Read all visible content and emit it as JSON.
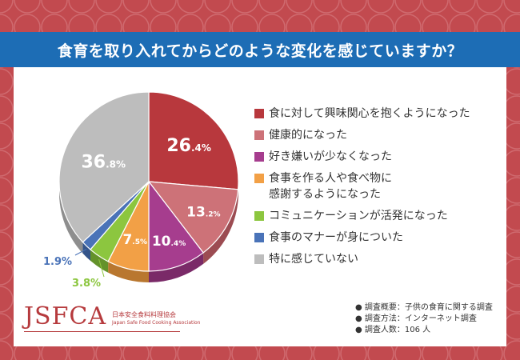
{
  "title": "食育を取り入れてからどのような変化を感じていますか？",
  "colors": {
    "background": "#c24a4f",
    "title_bar": "#1d6db5",
    "card": "#ffffff"
  },
  "chart_data": {
    "type": "pie",
    "title": "食育を取り入れてからどのような変化を感じていますか？",
    "unit": "%",
    "slices": [
      {
        "label": "食に対して興味関心を抱くようになった",
        "value": 26.4,
        "display_int": "26",
        "display_dec": ".4%",
        "color": "#b8383d",
        "dark": "#8a2529"
      },
      {
        "label": "健康的になった",
        "value": 13.2,
        "display_int": "13",
        "display_dec": ".2%",
        "color": "#cd7278",
        "dark": "#9c4c52"
      },
      {
        "label": "好き嫌いが少なくなった",
        "value": 10.4,
        "display_int": "10",
        "display_dec": ".4%",
        "color": "#a63d8e",
        "dark": "#7a2a68"
      },
      {
        "label": "食事を作る人や食べ物に\n感謝するようになった",
        "value": 7.5,
        "display_int": "7",
        "display_dec": ".5%",
        "color": "#f2a046",
        "dark": "#b9772f"
      },
      {
        "label": "コミュニケーションが活発になった",
        "value": 3.8,
        "display_int": "",
        "display_dec": "3.8%",
        "color": "#8cc63f",
        "dark": "#64922b"
      },
      {
        "label": "食事のマナーが身についた",
        "value": 1.9,
        "display_int": "",
        "display_dec": "1.9%",
        "color": "#4a73b8",
        "dark": "#34548a"
      },
      {
        "label": "特に感じていない",
        "value": 36.8,
        "display_int": "36",
        "display_dec": ".8%",
        "color": "#bdbdbd",
        "dark": "#8e8e8e"
      }
    ]
  },
  "legend_items": [
    "食に対して興味関心を抱くようになった",
    "健康的になった",
    "好き嫌いが少なくなった",
    "食事を作る人や食べ物に\n感謝するようになった",
    "コミュニケーションが活発になった",
    "食事のマナーが身についた",
    "特に感じていない"
  ],
  "logo": {
    "mark": "JSFCA",
    "jp": "日本安全食料料理協会",
    "en": "Japan Safe Food Cooking Association"
  },
  "survey": {
    "overview": "● 調査概要：子供の食育に関する調査",
    "method": "● 調査方法：インターネット調査",
    "count": "● 調査人数：106 人"
  }
}
